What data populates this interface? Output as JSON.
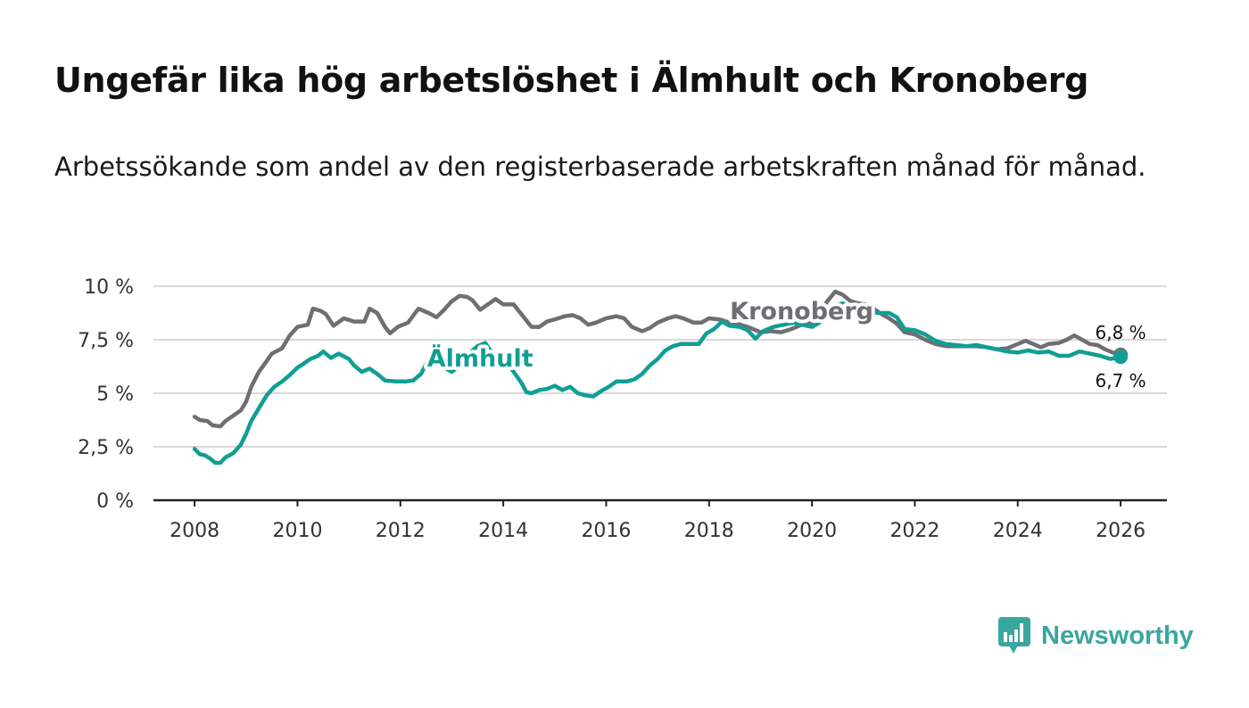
{
  "header": {
    "title": "Ungefär lika hög arbetslöshet i Älmhult och Kronoberg",
    "subtitle": "Arbetssökande som andel av den registerbaserade arbetskraften månad för månad."
  },
  "brand": {
    "name": "Newsworthy",
    "color": "#3aa6a0"
  },
  "chart_data": {
    "type": "line",
    "title": "Ungefär lika hög arbetslöshet i Älmhult och Kronoberg",
    "subtitle": "Arbetssökande som andel av den registerbaserade arbetskraften månad för månad.",
    "xlabel": "",
    "ylabel": "",
    "xlim": [
      2007.2,
      2026.9
    ],
    "ylim": [
      0,
      10
    ],
    "x_ticks": [
      2008,
      2010,
      2012,
      2014,
      2016,
      2018,
      2020,
      2022,
      2024,
      2026
    ],
    "y_ticks": [
      {
        "value": 0,
        "label": "0 %"
      },
      {
        "value": 2.5,
        "label": "2,5 %"
      },
      {
        "value": 5,
        "label": "5 %"
      },
      {
        "value": 7.5,
        "label": "7,5 %"
      },
      {
        "value": 10,
        "label": "10 %"
      }
    ],
    "grid": true,
    "series": [
      {
        "name": "Kronoberg",
        "color": "#6e6e73",
        "end_label": "6,8 %",
        "points": [
          [
            2008.0,
            3.9
          ],
          [
            2008.1,
            3.75
          ],
          [
            2008.25,
            3.7
          ],
          [
            2008.35,
            3.5
          ],
          [
            2008.5,
            3.45
          ],
          [
            2008.6,
            3.7
          ],
          [
            2008.75,
            3.95
          ],
          [
            2008.9,
            4.2
          ],
          [
            2009.0,
            4.6
          ],
          [
            2009.1,
            5.3
          ],
          [
            2009.25,
            6.0
          ],
          [
            2009.4,
            6.5
          ],
          [
            2009.5,
            6.85
          ],
          [
            2009.7,
            7.1
          ],
          [
            2009.85,
            7.7
          ],
          [
            2010.0,
            8.1
          ],
          [
            2010.2,
            8.2
          ],
          [
            2010.3,
            8.95
          ],
          [
            2010.45,
            8.85
          ],
          [
            2010.55,
            8.7
          ],
          [
            2010.7,
            8.15
          ],
          [
            2010.9,
            8.5
          ],
          [
            2011.1,
            8.35
          ],
          [
            2011.3,
            8.35
          ],
          [
            2011.4,
            8.95
          ],
          [
            2011.55,
            8.75
          ],
          [
            2011.7,
            8.1
          ],
          [
            2011.8,
            7.8
          ],
          [
            2011.95,
            8.1
          ],
          [
            2012.15,
            8.3
          ],
          [
            2012.35,
            8.95
          ],
          [
            2012.55,
            8.75
          ],
          [
            2012.7,
            8.55
          ],
          [
            2012.85,
            8.9
          ],
          [
            2013.0,
            9.3
          ],
          [
            2013.15,
            9.55
          ],
          [
            2013.3,
            9.5
          ],
          [
            2013.4,
            9.35
          ],
          [
            2013.55,
            8.9
          ],
          [
            2013.7,
            9.15
          ],
          [
            2013.85,
            9.4
          ],
          [
            2014.0,
            9.15
          ],
          [
            2014.2,
            9.15
          ],
          [
            2014.35,
            8.7
          ],
          [
            2014.55,
            8.1
          ],
          [
            2014.7,
            8.1
          ],
          [
            2014.85,
            8.35
          ],
          [
            2015.0,
            8.45
          ],
          [
            2015.2,
            8.6
          ],
          [
            2015.35,
            8.65
          ],
          [
            2015.5,
            8.5
          ],
          [
            2015.65,
            8.2
          ],
          [
            2015.8,
            8.3
          ],
          [
            2016.0,
            8.5
          ],
          [
            2016.2,
            8.6
          ],
          [
            2016.35,
            8.5
          ],
          [
            2016.5,
            8.1
          ],
          [
            2016.7,
            7.9
          ],
          [
            2016.85,
            8.05
          ],
          [
            2017.0,
            8.3
          ],
          [
            2017.2,
            8.5
          ],
          [
            2017.35,
            8.6
          ],
          [
            2017.5,
            8.5
          ],
          [
            2017.7,
            8.3
          ],
          [
            2017.85,
            8.3
          ],
          [
            2018.0,
            8.5
          ],
          [
            2018.2,
            8.45
          ],
          [
            2018.4,
            8.3
          ],
          [
            2018.55,
            8.25
          ],
          [
            2018.75,
            8.1
          ],
          [
            2019.0,
            7.85
          ],
          [
            2019.2,
            7.9
          ],
          [
            2019.4,
            7.85
          ],
          [
            2019.6,
            8.0
          ],
          [
            2019.8,
            8.2
          ],
          [
            2020.0,
            8.3
          ],
          [
            2020.15,
            8.75
          ],
          [
            2020.3,
            9.3
          ],
          [
            2020.45,
            9.75
          ],
          [
            2020.6,
            9.6
          ],
          [
            2020.75,
            9.3
          ],
          [
            2020.9,
            9.2
          ],
          [
            2021.05,
            9.15
          ],
          [
            2021.2,
            8.95
          ],
          [
            2021.35,
            8.7
          ],
          [
            2021.5,
            8.5
          ],
          [
            2021.65,
            8.25
          ],
          [
            2021.8,
            7.85
          ],
          [
            2022.0,
            7.75
          ],
          [
            2022.2,
            7.5
          ],
          [
            2022.4,
            7.3
          ],
          [
            2022.6,
            7.2
          ],
          [
            2022.8,
            7.2
          ],
          [
            2023.0,
            7.2
          ],
          [
            2023.2,
            7.2
          ],
          [
            2023.4,
            7.15
          ],
          [
            2023.6,
            7.05
          ],
          [
            2023.8,
            7.1
          ],
          [
            2024.0,
            7.3
          ],
          [
            2024.15,
            7.45
          ],
          [
            2024.3,
            7.3
          ],
          [
            2024.45,
            7.15
          ],
          [
            2024.6,
            7.3
          ],
          [
            2024.8,
            7.35
          ],
          [
            2024.95,
            7.5
          ],
          [
            2025.1,
            7.7
          ],
          [
            2025.25,
            7.5
          ],
          [
            2025.4,
            7.3
          ],
          [
            2025.55,
            7.25
          ],
          [
            2025.7,
            7.05
          ],
          [
            2025.85,
            6.9
          ],
          [
            2026.0,
            6.8
          ]
        ]
      },
      {
        "name": "Älmhult",
        "color": "#119e94",
        "end_label": "6,7 %",
        "points": [
          [
            2008.0,
            2.4
          ],
          [
            2008.1,
            2.15
          ],
          [
            2008.2,
            2.1
          ],
          [
            2008.3,
            1.95
          ],
          [
            2008.4,
            1.75
          ],
          [
            2008.5,
            1.75
          ],
          [
            2008.6,
            2.0
          ],
          [
            2008.75,
            2.2
          ],
          [
            2008.9,
            2.6
          ],
          [
            2009.0,
            3.1
          ],
          [
            2009.1,
            3.7
          ],
          [
            2009.25,
            4.3
          ],
          [
            2009.4,
            4.9
          ],
          [
            2009.55,
            5.3
          ],
          [
            2009.7,
            5.55
          ],
          [
            2009.85,
            5.85
          ],
          [
            2010.0,
            6.2
          ],
          [
            2010.1,
            6.35
          ],
          [
            2010.25,
            6.6
          ],
          [
            2010.4,
            6.75
          ],
          [
            2010.5,
            6.95
          ],
          [
            2010.65,
            6.65
          ],
          [
            2010.8,
            6.85
          ],
          [
            2011.0,
            6.6
          ],
          [
            2011.1,
            6.3
          ],
          [
            2011.25,
            6.0
          ],
          [
            2011.4,
            6.15
          ],
          [
            2011.55,
            5.9
          ],
          [
            2011.7,
            5.6
          ],
          [
            2011.9,
            5.55
          ],
          [
            2012.1,
            5.55
          ],
          [
            2012.25,
            5.6
          ],
          [
            2012.4,
            5.9
          ],
          [
            2012.55,
            6.6
          ],
          [
            2012.7,
            6.45
          ],
          [
            2012.85,
            6.2
          ],
          [
            2013.0,
            6.0
          ],
          [
            2013.15,
            6.3
          ],
          [
            2013.3,
            6.8
          ],
          [
            2013.5,
            7.2
          ],
          [
            2013.65,
            7.35
          ],
          [
            2013.8,
            6.8
          ],
          [
            2013.95,
            6.45
          ],
          [
            2014.1,
            6.3
          ],
          [
            2014.2,
            6.0
          ],
          [
            2014.35,
            5.5
          ],
          [
            2014.45,
            5.05
          ],
          [
            2014.55,
            5.0
          ],
          [
            2014.7,
            5.15
          ],
          [
            2014.85,
            5.2
          ],
          [
            2015.0,
            5.35
          ],
          [
            2015.15,
            5.15
          ],
          [
            2015.3,
            5.3
          ],
          [
            2015.45,
            5.0
          ],
          [
            2015.6,
            4.9
          ],
          [
            2015.75,
            4.85
          ],
          [
            2015.9,
            5.1
          ],
          [
            2016.05,
            5.3
          ],
          [
            2016.2,
            5.55
          ],
          [
            2016.4,
            5.55
          ],
          [
            2016.55,
            5.65
          ],
          [
            2016.7,
            5.9
          ],
          [
            2016.85,
            6.3
          ],
          [
            2017.0,
            6.6
          ],
          [
            2017.15,
            7.0
          ],
          [
            2017.3,
            7.2
          ],
          [
            2017.45,
            7.3
          ],
          [
            2017.6,
            7.3
          ],
          [
            2017.8,
            7.3
          ],
          [
            2017.95,
            7.8
          ],
          [
            2018.1,
            8.0
          ],
          [
            2018.25,
            8.35
          ],
          [
            2018.4,
            8.15
          ],
          [
            2018.6,
            8.1
          ],
          [
            2018.75,
            7.95
          ],
          [
            2018.9,
            7.55
          ],
          [
            2019.05,
            7.9
          ],
          [
            2019.25,
            8.1
          ],
          [
            2019.45,
            8.2
          ],
          [
            2019.65,
            8.3
          ],
          [
            2019.8,
            8.2
          ],
          [
            2020.0,
            8.1
          ],
          [
            2020.15,
            8.3
          ],
          [
            2020.3,
            8.8
          ],
          [
            2020.45,
            9.1
          ],
          [
            2020.6,
            9.2
          ],
          [
            2020.75,
            9.05
          ],
          [
            2020.9,
            8.95
          ],
          [
            2021.1,
            8.8
          ],
          [
            2021.3,
            8.75
          ],
          [
            2021.5,
            8.75
          ],
          [
            2021.65,
            8.55
          ],
          [
            2021.8,
            8.0
          ],
          [
            2022.0,
            7.95
          ],
          [
            2022.2,
            7.75
          ],
          [
            2022.4,
            7.45
          ],
          [
            2022.6,
            7.3
          ],
          [
            2022.8,
            7.25
          ],
          [
            2023.0,
            7.2
          ],
          [
            2023.2,
            7.25
          ],
          [
            2023.4,
            7.15
          ],
          [
            2023.6,
            7.05
          ],
          [
            2023.8,
            6.95
          ],
          [
            2024.0,
            6.9
          ],
          [
            2024.2,
            7.0
          ],
          [
            2024.4,
            6.9
          ],
          [
            2024.6,
            6.95
          ],
          [
            2024.8,
            6.75
          ],
          [
            2025.0,
            6.75
          ],
          [
            2025.2,
            6.95
          ],
          [
            2025.4,
            6.85
          ],
          [
            2025.6,
            6.75
          ],
          [
            2025.8,
            6.6
          ],
          [
            2026.0,
            6.7
          ]
        ]
      }
    ],
    "annotations": [
      {
        "text": "Kronoberg",
        "series": "Kronoberg",
        "x": 2019.8,
        "y": 8.45
      },
      {
        "text": "Älmhult",
        "series": "Älmhult",
        "x": 2013.55,
        "y": 6.25
      }
    ]
  }
}
